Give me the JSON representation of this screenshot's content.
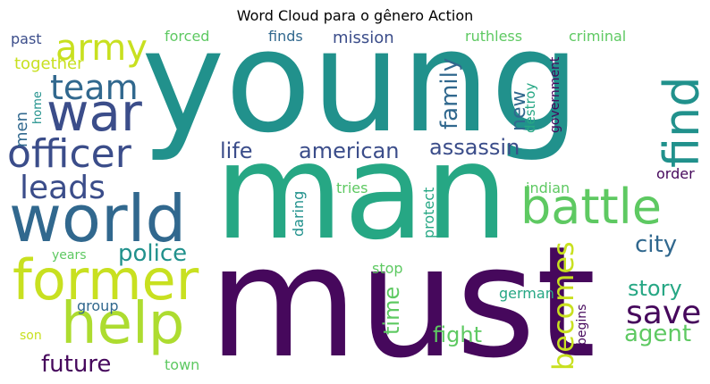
{
  "title": "Word Cloud para o gênero Action",
  "palette": {
    "dark_purple": "#46085c",
    "indigo": "#3b4d8a",
    "blue": "#31688e",
    "teal": "#21918c",
    "green_teal": "#26a784",
    "green": "#5ec962",
    "lime": "#addc30",
    "yellow_green": "#c8e020"
  },
  "words": {
    "young": "young",
    "man": "man",
    "must": "must",
    "world": "world",
    "find": "find",
    "war": "war",
    "former": "former",
    "help": "help",
    "battle": "battle",
    "officer": "officer",
    "army": "army",
    "team": "team",
    "leads": "leads",
    "save": "save",
    "becomes": "becomes",
    "police": "police",
    "american": "american",
    "assassin": "assassin",
    "life": "life",
    "family": "family",
    "city": "city",
    "agent": "agent",
    "story": "story",
    "future": "future",
    "fight": "fight",
    "time": "time",
    "new": "new",
    "men": "men",
    "together": "together",
    "past": "past",
    "forced": "forced",
    "finds": "finds",
    "mission": "mission",
    "ruthless": "ruthless",
    "criminal": "criminal",
    "government": "government",
    "destroy": "destroy",
    "home": "home",
    "order": "order",
    "indian": "indian",
    "protect": "protect",
    "tries": "tries",
    "daring": "daring",
    "years": "years",
    "group": "group",
    "son": "son",
    "town": "town",
    "stop": "stop",
    "german": "german",
    "begins": "begins"
  }
}
